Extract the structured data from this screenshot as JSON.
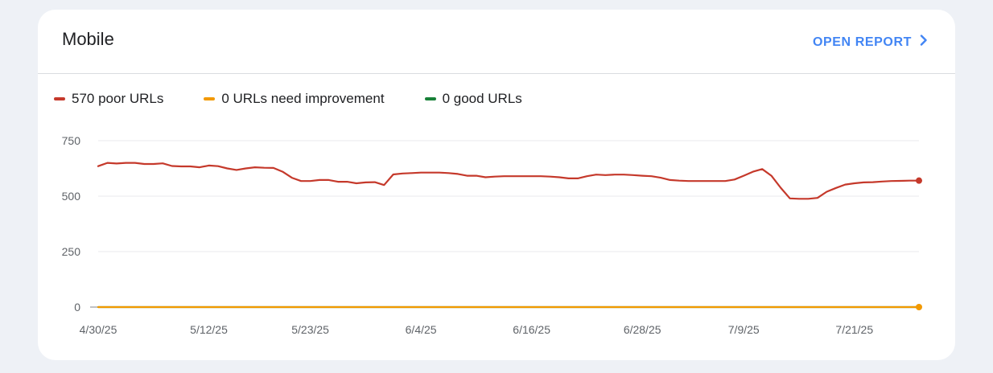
{
  "card": {
    "title": "Mobile",
    "open_report_label": "OPEN REPORT"
  },
  "legend": [
    {
      "label": "570 poor URLs",
      "color": "#c5392b"
    },
    {
      "label": "0 URLs need improvement",
      "color": "#f29900"
    },
    {
      "label": "0 good URLs",
      "color": "#188038"
    }
  ],
  "chart_data": {
    "type": "line",
    "ylim": [
      0,
      750
    ],
    "yticks": [
      0,
      250,
      500,
      750
    ],
    "grid": true,
    "legend_position": "top-left",
    "x_ticks": [
      {
        "label": "4/30/25",
        "day": 0
      },
      {
        "label": "5/12/25",
        "day": 12
      },
      {
        "label": "5/23/25",
        "day": 23
      },
      {
        "label": "6/4/25",
        "day": 35
      },
      {
        "label": "6/16/25",
        "day": 47
      },
      {
        "label": "6/28/25",
        "day": 59
      },
      {
        "label": "7/9/25",
        "day": 70
      },
      {
        "label": "7/21/25",
        "day": 82
      }
    ],
    "x_range": [
      0,
      89
    ],
    "series": [
      {
        "name": "570 poor URLs",
        "color": "#c5392b",
        "end_marker": true,
        "values": [
          635,
          650,
          647,
          650,
          650,
          645,
          645,
          648,
          636,
          634,
          634,
          630,
          638,
          635,
          625,
          618,
          625,
          630,
          628,
          627,
          610,
          583,
          568,
          568,
          573,
          573,
          565,
          565,
          558,
          562,
          563,
          550,
          598,
          602,
          604,
          606,
          606,
          606,
          604,
          600,
          592,
          592,
          585,
          588,
          590,
          590,
          590,
          590,
          590,
          588,
          585,
          580,
          580,
          590,
          597,
          595,
          597,
          597,
          595,
          592,
          590,
          583,
          573,
          570,
          568,
          568,
          568,
          568,
          568,
          575,
          592,
          610,
          622,
          592,
          538,
          490,
          488,
          488,
          492,
          520,
          537,
          552,
          558,
          562,
          563,
          566,
          568,
          569,
          570,
          570
        ]
      },
      {
        "name": "0 URLs need improvement",
        "color": "#f29900",
        "end_marker": true,
        "values": [
          0,
          0
        ]
      },
      {
        "name": "0 good URLs",
        "color": "#188038",
        "end_marker": false,
        "values": [
          0,
          0
        ]
      }
    ]
  }
}
